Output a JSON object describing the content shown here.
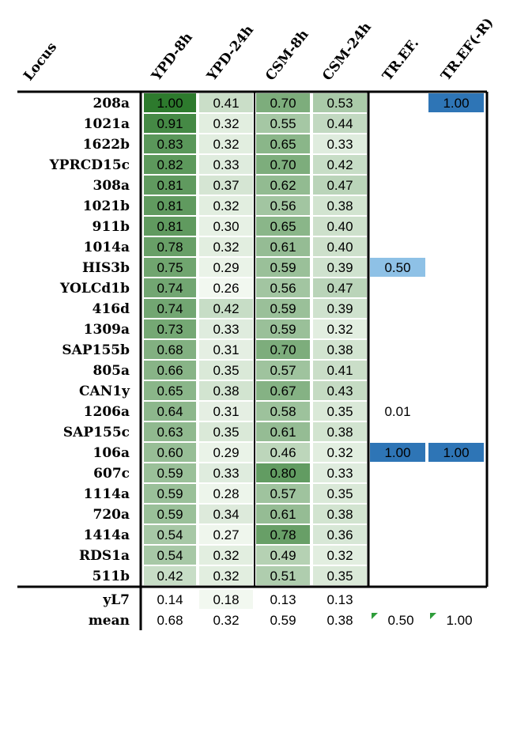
{
  "chart_data": {
    "type": "heatmap",
    "columns": [
      "Locus",
      "YPD-8h",
      "YPD-24h",
      "CSM-8h",
      "CSM-24h",
      "TR.EF.",
      "TR.EF(-R)"
    ],
    "rows": [
      {
        "locus": "208a",
        "values": [
          1.0,
          0.41,
          0.7,
          0.53
        ],
        "tref": "",
        "tref_r": "1.00"
      },
      {
        "locus": "1021a",
        "values": [
          0.91,
          0.32,
          0.55,
          0.44
        ],
        "tref": "",
        "tref_r": ""
      },
      {
        "locus": "1622b",
        "values": [
          0.83,
          0.32,
          0.65,
          0.33
        ],
        "tref": "",
        "tref_r": ""
      },
      {
        "locus": "YPRCD15c",
        "values": [
          0.82,
          0.33,
          0.7,
          0.42
        ],
        "tref": "",
        "tref_r": ""
      },
      {
        "locus": "308a",
        "values": [
          0.81,
          0.37,
          0.62,
          0.47
        ],
        "tref": "",
        "tref_r": ""
      },
      {
        "locus": "1021b",
        "values": [
          0.81,
          0.32,
          0.56,
          0.38
        ],
        "tref": "",
        "tref_r": ""
      },
      {
        "locus": "911b",
        "values": [
          0.81,
          0.3,
          0.65,
          0.4
        ],
        "tref": "",
        "tref_r": ""
      },
      {
        "locus": "1014a",
        "values": [
          0.78,
          0.32,
          0.61,
          0.4
        ],
        "tref": "",
        "tref_r": ""
      },
      {
        "locus": "HIS3b",
        "values": [
          0.75,
          0.29,
          0.59,
          0.39
        ],
        "tref": "0.50",
        "tref_r": ""
      },
      {
        "locus": "YOLCd1b",
        "values": [
          0.74,
          0.26,
          0.56,
          0.47
        ],
        "tref": "",
        "tref_r": ""
      },
      {
        "locus": "416d",
        "values": [
          0.74,
          0.42,
          0.59,
          0.39
        ],
        "tref": "",
        "tref_r": ""
      },
      {
        "locus": "1309a",
        "values": [
          0.73,
          0.33,
          0.59,
          0.32
        ],
        "tref": "",
        "tref_r": ""
      },
      {
        "locus": "SAP155b",
        "values": [
          0.68,
          0.31,
          0.7,
          0.38
        ],
        "tref": "",
        "tref_r": ""
      },
      {
        "locus": "805a",
        "values": [
          0.66,
          0.35,
          0.57,
          0.41
        ],
        "tref": "",
        "tref_r": ""
      },
      {
        "locus": "CAN1y",
        "values": [
          0.65,
          0.38,
          0.67,
          0.43
        ],
        "tref": "",
        "tref_r": ""
      },
      {
        "locus": "1206a",
        "values": [
          0.64,
          0.31,
          0.58,
          0.35
        ],
        "tref": "0.01",
        "tref_r": ""
      },
      {
        "locus": "SAP155c",
        "values": [
          0.63,
          0.35,
          0.61,
          0.38
        ],
        "tref": "",
        "tref_r": ""
      },
      {
        "locus": "106a",
        "values": [
          0.6,
          0.29,
          0.46,
          0.32
        ],
        "tref": "1.00",
        "tref_r": "1.00"
      },
      {
        "locus": "607c",
        "values": [
          0.59,
          0.33,
          0.8,
          0.33
        ],
        "tref": "",
        "tref_r": ""
      },
      {
        "locus": "1114a",
        "values": [
          0.59,
          0.28,
          0.57,
          0.35
        ],
        "tref": "",
        "tref_r": ""
      },
      {
        "locus": "720a",
        "values": [
          0.59,
          0.34,
          0.61,
          0.38
        ],
        "tref": "",
        "tref_r": ""
      },
      {
        "locus": "1414a",
        "values": [
          0.54,
          0.27,
          0.78,
          0.36
        ],
        "tref": "",
        "tref_r": ""
      },
      {
        "locus": "RDS1a",
        "values": [
          0.54,
          0.32,
          0.49,
          0.32
        ],
        "tref": "",
        "tref_r": ""
      },
      {
        "locus": "511b",
        "values": [
          0.42,
          0.32,
          0.51,
          0.35
        ],
        "tref": "",
        "tref_r": ""
      }
    ],
    "summary_rows": [
      {
        "locus": "yL7",
        "values": [
          "0.14",
          "0.18",
          "0.13",
          "0.13"
        ],
        "tref": "",
        "tref_r": ""
      },
      {
        "locus": "mean",
        "values": [
          "0.68",
          "0.32",
          "0.59",
          "0.38"
        ],
        "tref": "0.50",
        "tref_r": "1.00"
      }
    ],
    "colors": {
      "green_dark": "#2d7a2d",
      "green_light": "#f2f8f0",
      "blue_dark": "#2e75b6",
      "blue_light": "#8ec1e6",
      "flag": "#2e9d3a"
    }
  }
}
